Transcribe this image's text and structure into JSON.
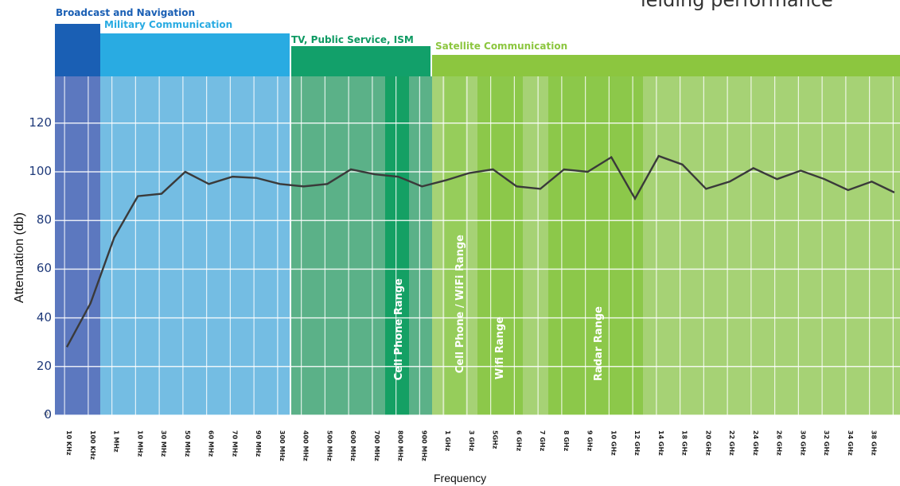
{
  "top_text": "ielding performance",
  "bands": [
    {
      "label": "Broadcast and Navigation",
      "color": "#1a5fb4"
    },
    {
      "label": "Military Communication",
      "color": "#29abe2"
    },
    {
      "label": "TV, Public Service, ISM",
      "color": "#12a06a"
    },
    {
      "label": "Satellite Communication",
      "color": "#8cc63f"
    }
  ],
  "ranges": [
    {
      "label": "Cell Phone Range"
    },
    {
      "label": "Cell Phone / WiFi Range"
    },
    {
      "label": "Wifi Range"
    },
    {
      "label": "Radar Range"
    }
  ],
  "chart_data": {
    "type": "line",
    "title": "",
    "xlabel": "Frequency",
    "ylabel": "Attenuation (db)",
    "ylim": [
      0,
      130
    ],
    "yticks": [
      "0",
      "20",
      "40",
      "60",
      "80",
      "100",
      "120"
    ],
    "grid": true,
    "categories": [
      "10 KHz",
      "100 KHz",
      "1 MHz",
      "10 MHz",
      "30 MHz",
      "50 MHz",
      "60 MHz",
      "70 MHz",
      "90 MHz",
      "300 MHz",
      "400 MHz",
      "500 MHz",
      "600 MHz",
      "700 MHz",
      "800 MHz",
      "900 MHz",
      "1 GHz",
      "3 GHz",
      "5GHz",
      "6 GHz",
      "7 GHz",
      "8 GHz",
      "9 GHz",
      "10 GHz",
      "12 GHz",
      "14 GHz",
      "18 GHz",
      "20 GHz",
      "22 GHz",
      "24 GHz",
      "26 GHz",
      "30 GHz",
      "32 GHz",
      "34 GHz",
      "38 GHz"
    ],
    "curve": [
      {
        "x": "10 KHz",
        "y": 28
      },
      {
        "x": "100 KHz",
        "y": 46
      },
      {
        "x": "1 MHz",
        "y": 73
      },
      {
        "x": "10 MHz",
        "y": 90
      },
      {
        "x": "30 MHz",
        "y": 91
      },
      {
        "x": "50 MHz",
        "y": 100
      },
      {
        "x": "60 MHz",
        "y": 95
      },
      {
        "x": "70 MHz",
        "y": 98
      },
      {
        "x": "90 MHz",
        "y": 97.5
      },
      {
        "x": "300 MHz",
        "y": 95
      },
      {
        "x": "400 MHz",
        "y": 94
      },
      {
        "x": "500 MHz",
        "y": 95
      },
      {
        "x": "600 MHz",
        "y": 101
      },
      {
        "x": "700 MHz",
        "y": 99
      },
      {
        "x": "800 MHz",
        "y": 98
      },
      {
        "x": "900 MHz",
        "y": 94
      },
      {
        "x": "1 GHz",
        "y": 96.5
      },
      {
        "x": "3 GHz",
        "y": 99.5
      },
      {
        "x": "5GHz",
        "y": 101
      },
      {
        "x": "6 GHz",
        "y": 94
      },
      {
        "x": "7 GHz",
        "y": 93
      },
      {
        "x": "8 GHz",
        "y": 101
      },
      {
        "x": "9 GHz",
        "y": 100
      },
      {
        "x": "10 GHz",
        "y": 106
      },
      {
        "x": "12 GHz",
        "y": 89
      },
      {
        "x": "14 GHz",
        "y": 106.5
      },
      {
        "x": "18 GHz",
        "y": 103
      },
      {
        "x": "20 GHz",
        "y": 93
      },
      {
        "x": "22 GHz",
        "y": 96
      },
      {
        "x": "24 GHz",
        "y": 101.5
      },
      {
        "x": "26 GHz",
        "y": 97
      },
      {
        "x": "30 GHz",
        "y": 100.5
      },
      {
        "x": "32 GHz",
        "y": 97
      },
      {
        "x": "34 GHz",
        "y": 92.5
      },
      {
        "x": "38 GHz",
        "y": 96
      },
      {
        "x": "",
        "y": 91.5
      }
    ]
  }
}
